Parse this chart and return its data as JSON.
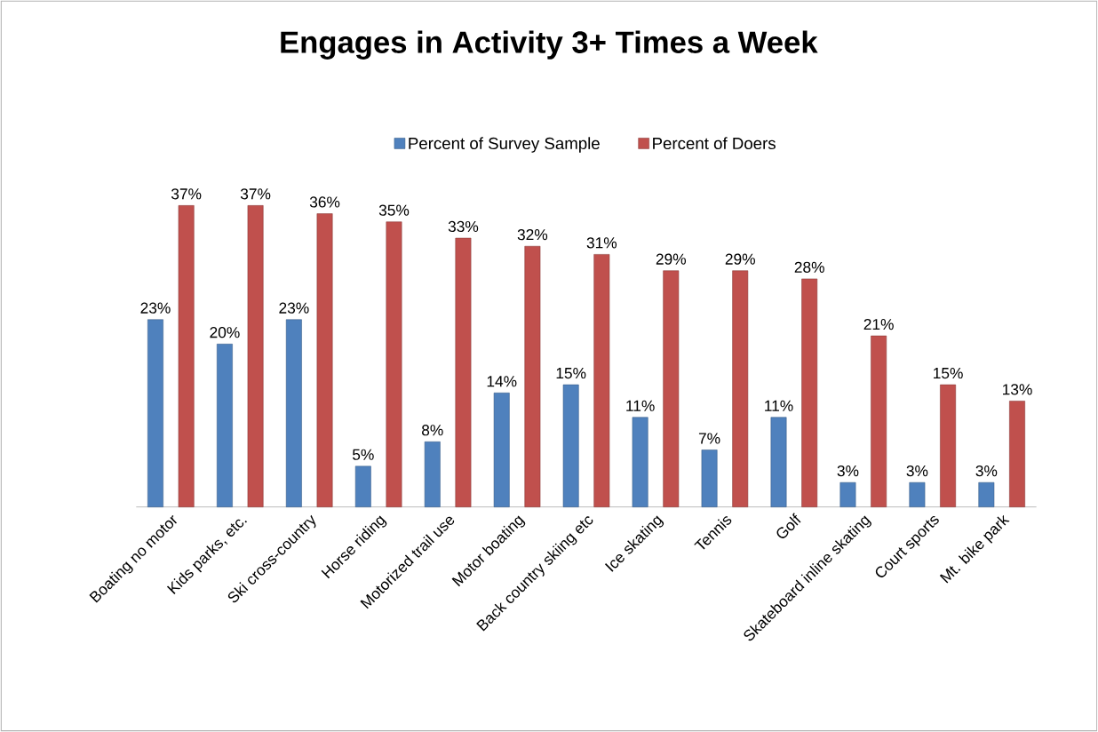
{
  "chart_data": {
    "type": "bar",
    "title": "Engages in Activity 3+ Times a Week",
    "categories": [
      "Boating no motor",
      "Kids parks, etc.",
      "Ski cross-country",
      "Horse riding",
      "Motorized trail use",
      "Motor boating",
      "Back country skiing etc",
      "Ice skating",
      "Tennis",
      "Golf",
      "Skateboard inline skating",
      "Court sports",
      "Mt. bike park"
    ],
    "series": [
      {
        "name": "Percent of Survey Sample",
        "color": "#4f81bd",
        "values": [
          23,
          20,
          23,
          5,
          8,
          14,
          15,
          11,
          7,
          11,
          3,
          3,
          3
        ],
        "value_labels": [
          "23%",
          "20%",
          "23%",
          "5%",
          "8%",
          "14%",
          "15%",
          "11%",
          "7%",
          "11%",
          "3%",
          "3%",
          "3%"
        ]
      },
      {
        "name": "Percent of Doers",
        "color": "#c0504d",
        "values": [
          37,
          37,
          36,
          35,
          33,
          32,
          31,
          29,
          29,
          28,
          21,
          15,
          13
        ],
        "value_labels": [
          "37%",
          "37%",
          "36%",
          "35%",
          "33%",
          "32%",
          "31%",
          "29%",
          "29%",
          "28%",
          "21%",
          "15%",
          "13%"
        ]
      }
    ],
    "legend": "top"
  }
}
